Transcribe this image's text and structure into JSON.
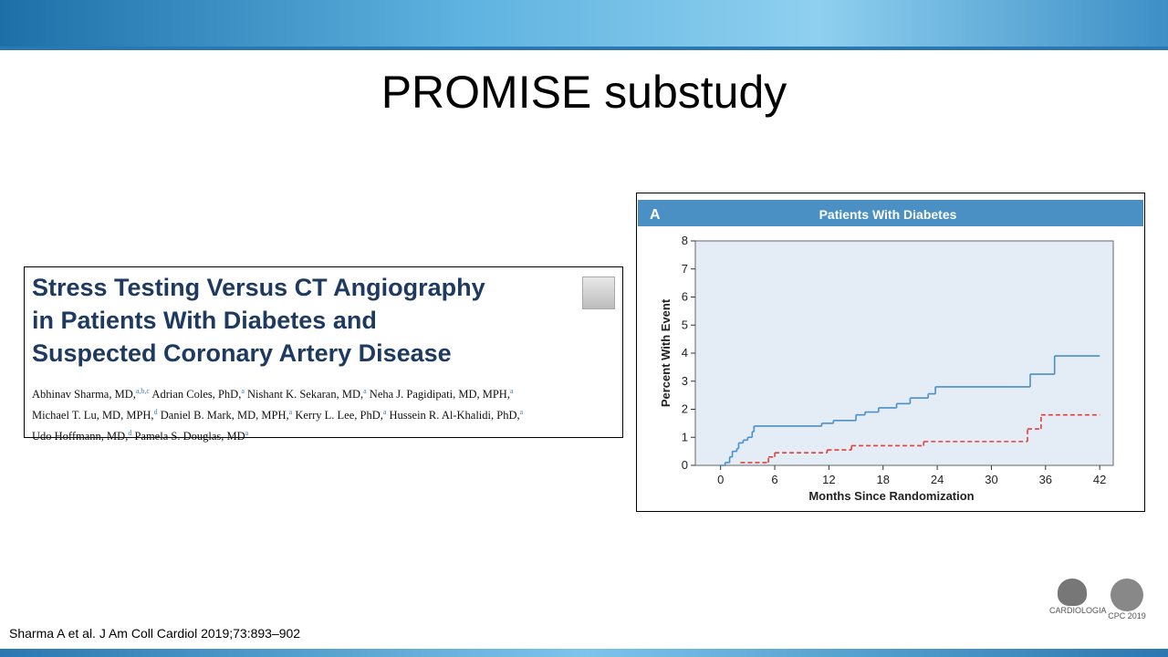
{
  "title": "PROMISE substudy",
  "paper": {
    "title_lines": [
      "Stress Testing Versus CT Angiography",
      "in Patients With Diabetes and",
      "Suspected Coronary Artery Disease"
    ],
    "author_lines": [
      [
        {
          "name": "Abhinav Sharma, MD,",
          "sup": "a,b,c"
        },
        {
          "name": "Adrian Coles, PhD,",
          "sup": "a"
        },
        {
          "name": "Nishant K. Sekaran, MD,",
          "sup": "a"
        },
        {
          "name": "Neha J. Pagidipati, MD, MPH,",
          "sup": "a"
        }
      ],
      [
        {
          "name": "Michael T. Lu, MD, MPH,",
          "sup": "d"
        },
        {
          "name": "Daniel B. Mark, MD, MPH,",
          "sup": "a"
        },
        {
          "name": "Kerry L. Lee, PhD,",
          "sup": "a"
        },
        {
          "name": "Hussein R. Al-Khalidi, PhD,",
          "sup": "a"
        }
      ],
      [
        {
          "name": "Udo Hoffmann, MD,",
          "sup": "d"
        },
        {
          "name": "Pamela S. Douglas, MD",
          "sup": "a"
        }
      ]
    ]
  },
  "citation": "Sharma A et al. J Am Coll Cardiol 2019;73:893–902",
  "logos": [
    "CARDIOLOGIA",
    "CPC 2019"
  ],
  "chart_data": {
    "type": "step",
    "panel": "A",
    "title": "Patients With Diabetes",
    "x_label": "Months Since Randomization",
    "y_label": "Percent With Event",
    "xlim": [
      -2.8,
      43.5
    ],
    "ylim": [
      0,
      8
    ],
    "xticks": [
      0,
      6,
      12,
      18,
      24,
      30,
      36,
      42
    ],
    "yticks": [
      0,
      1,
      2,
      3,
      4,
      5,
      6,
      7,
      8
    ],
    "series": [
      {
        "color": "#4a8fc8",
        "dash": false,
        "x": [
          0,
          0.5,
          1,
          1.3,
          1.8,
          2,
          2.5,
          3,
          3.5,
          3.7,
          11.2,
          12.5,
          15,
          16,
          17.5,
          19.5,
          21,
          23,
          23.8,
          34.3,
          37,
          42
        ],
        "values": [
          0,
          0.1,
          0.3,
          0.5,
          0.6,
          0.8,
          0.9,
          1.0,
          1.2,
          1.4,
          1.5,
          1.6,
          1.8,
          1.9,
          2.05,
          2.2,
          2.4,
          2.55,
          2.8,
          3.25,
          3.9,
          3.9
        ]
      },
      {
        "color": "#e0403a",
        "dash": true,
        "x": [
          2.2,
          5.3,
          6,
          11.8,
          14.5,
          22.5,
          34,
          35.5,
          42
        ],
        "values": [
          0.1,
          0.3,
          0.45,
          0.55,
          0.7,
          0.85,
          1.3,
          1.8,
          1.8
        ]
      }
    ]
  }
}
